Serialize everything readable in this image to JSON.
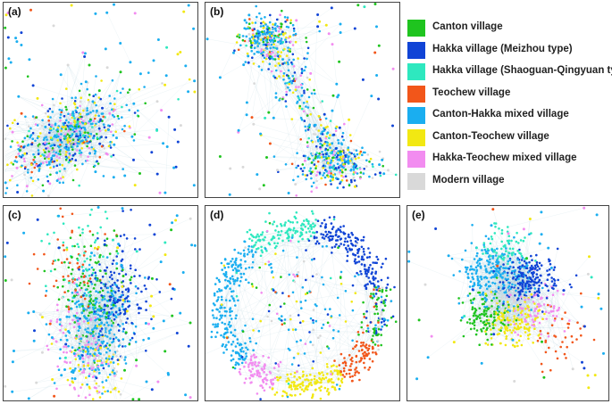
{
  "panels": [
    {
      "label": "(a)",
      "layout": "blob"
    },
    {
      "label": "(b)",
      "layout": "dumbbell"
    },
    {
      "label": "(c)",
      "layout": "column"
    },
    {
      "label": "(d)",
      "layout": "ring"
    },
    {
      "label": "(e)",
      "layout": "clustered"
    }
  ],
  "legend": [
    {
      "label": "Canton village",
      "color": "#1fc41f"
    },
    {
      "label": "Hakka village (Meizhou type)",
      "color": "#1044d6"
    },
    {
      "label": "Hakka village (Shaoguan-Qingyuan type)",
      "color": "#2ee8bf"
    },
    {
      "label": "Teochew village",
      "color": "#f2561a"
    },
    {
      "label": "Canton-Hakka mixed village",
      "color": "#1aaef0"
    },
    {
      "label": "Canton-Teochew village",
      "color": "#f2e812"
    },
    {
      "label": "Hakka-Teochew mixed village",
      "color": "#f28cf0"
    },
    {
      "label": "Modern village",
      "color": "#d9d9d9"
    }
  ]
}
